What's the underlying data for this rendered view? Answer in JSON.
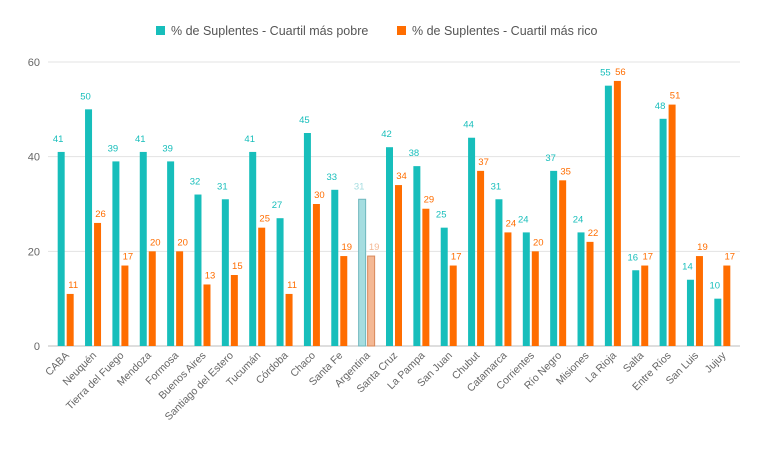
{
  "chart_data": {
    "type": "bar",
    "title": "",
    "xlabel": "",
    "ylabel": "",
    "ylim": [
      0,
      60
    ],
    "yticks": [
      0,
      20,
      40,
      60
    ],
    "grid": true,
    "legend_position": "top-center",
    "highlight_category": "Argentina",
    "categories": [
      "CABA",
      "Neuquén",
      "Tierra del Fuego",
      "Mendoza",
      "Formosa",
      "Buenos Aires",
      "Santiago del Estero",
      "Tucumán",
      "Córdoba",
      "Chaco",
      "Santa Fe",
      "Argentina",
      "Santa Cruz",
      "La Pampa",
      "San Juan",
      "Chubut",
      "Catamarca",
      "Corrientes",
      "Río Negro",
      "Misiones",
      "La Rioja",
      "Salta",
      "Entre Ríos",
      "San Luis",
      "Jujuy"
    ],
    "series": [
      {
        "name": "% de Suplentes - Cuartil más pobre",
        "color": "#17BEBB",
        "highlight_color": "#A5DDE0",
        "values": [
          41,
          50,
          39,
          41,
          39,
          32,
          31,
          41,
          27,
          45,
          33,
          31,
          42,
          38,
          25,
          44,
          31,
          24,
          37,
          24,
          55,
          16,
          48,
          14,
          10
        ]
      },
      {
        "name": "% de Suplentes - Cuartil más rico",
        "color": "#FF6D00",
        "highlight_color": "#F4B894",
        "values": [
          11,
          26,
          17,
          20,
          20,
          13,
          15,
          25,
          11,
          30,
          19,
          19,
          34,
          29,
          17,
          37,
          24,
          20,
          35,
          22,
          56,
          17,
          51,
          19,
          17
        ]
      }
    ]
  }
}
